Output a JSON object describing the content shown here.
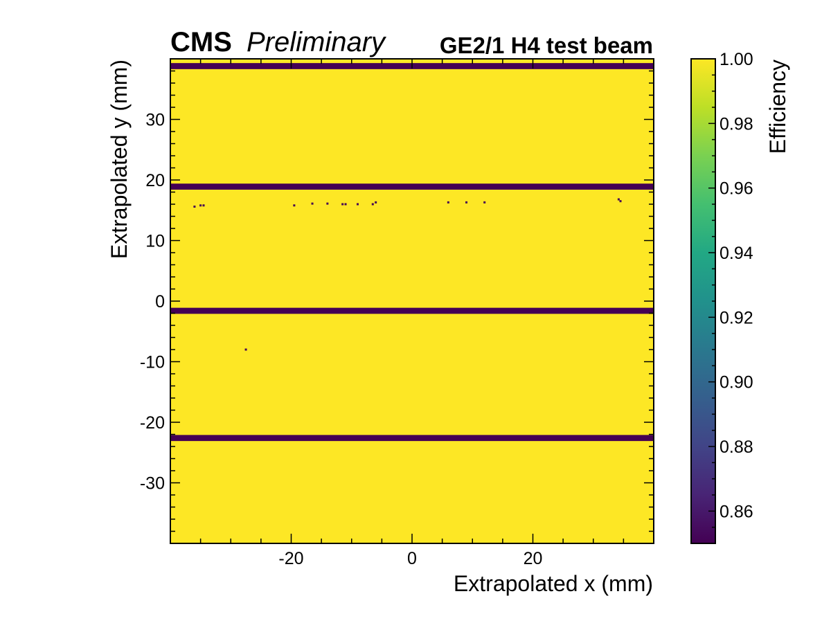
{
  "chart_data": {
    "type": "heatmap",
    "experiment_label": "CMS",
    "status_label": "Preliminary",
    "title": "GE2/1 H4 test beam",
    "xlabel": "Extrapolated x (mm)",
    "ylabel": "Extrapolated y (mm)",
    "xlim": [
      -40,
      40
    ],
    "ylim": [
      -40,
      40
    ],
    "x_ticks": [
      -20,
      0,
      20
    ],
    "y_ticks": [
      -30,
      -20,
      -10,
      0,
      10,
      20,
      30
    ],
    "x_tick_labels": [
      "-20",
      "0",
      "20"
    ],
    "y_tick_labels": [
      "-30",
      "-20",
      "-10",
      "0",
      "10",
      "20",
      "30"
    ],
    "colorbar": {
      "label": "Efficiency",
      "colormap": "viridis",
      "range": [
        0.85,
        1.0
      ],
      "ticks": [
        0.86,
        0.88,
        0.9,
        0.92,
        0.94,
        0.96,
        0.98,
        1.0
      ],
      "tick_labels": [
        "0.86",
        "0.88",
        "0.90",
        "0.92",
        "0.94",
        "0.96",
        "0.98",
        "1.00"
      ]
    },
    "background_efficiency": 1.0,
    "low_efficiency_bands": [
      {
        "y_center": 38.8,
        "y_width": 1.0,
        "efficiency": 0.85
      },
      {
        "y_center": 18.9,
        "y_width": 1.0,
        "efficiency": 0.85
      },
      {
        "y_center": -1.6,
        "y_width": 1.0,
        "efficiency": 0.85
      },
      {
        "y_center": -22.6,
        "y_width": 1.0,
        "efficiency": 0.85
      }
    ],
    "isolated_low_points": [
      {
        "x": -36,
        "y": 15.6
      },
      {
        "x": -35,
        "y": 15.8
      },
      {
        "x": -34.5,
        "y": 15.8
      },
      {
        "x": -19.5,
        "y": 15.8
      },
      {
        "x": -16.5,
        "y": 16.1
      },
      {
        "x": -14,
        "y": 16.1
      },
      {
        "x": -11.5,
        "y": 16.0
      },
      {
        "x": -11,
        "y": 16.0
      },
      {
        "x": -9,
        "y": 16.0
      },
      {
        "x": -6.5,
        "y": 16.0
      },
      {
        "x": -6,
        "y": 16.3
      },
      {
        "x": 6,
        "y": 16.3
      },
      {
        "x": 9,
        "y": 16.3
      },
      {
        "x": 12,
        "y": 16.3
      },
      {
        "x": 34.2,
        "y": 16.8
      },
      {
        "x": 34.5,
        "y": 16.5
      },
      {
        "x": -27.5,
        "y": -8
      }
    ]
  },
  "colors": {
    "high_efficiency": "#fde725",
    "low_efficiency": "#440154",
    "frame": "#000000"
  }
}
